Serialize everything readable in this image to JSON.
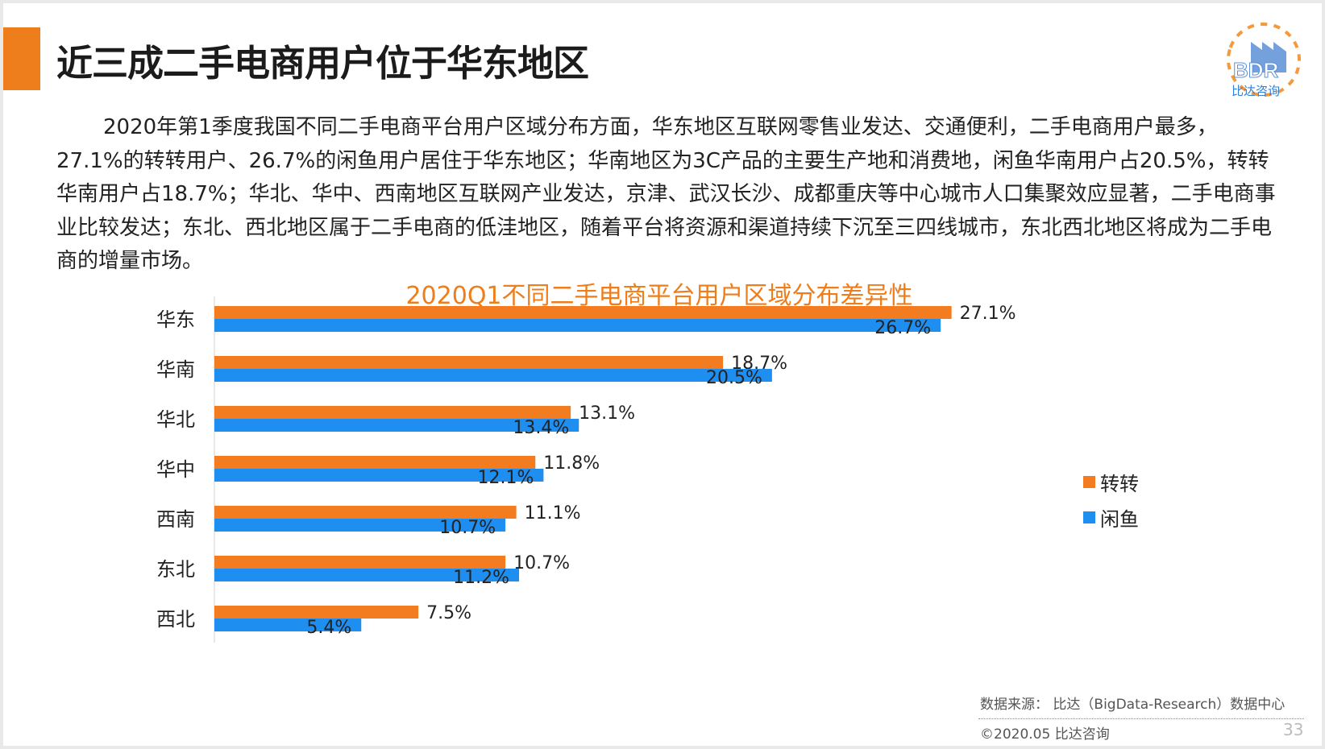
{
  "header": {
    "title": "近三成二手电商用户位于华东地区",
    "logo_text": "BDR",
    "logo_subtext": "比达咨询"
  },
  "paragraph": "2020年第1季度我国不同二手电商平台用户区域分布方面，华东地区互联网零售业发达、交通便利，二手电商用户最多，27.1%的转转用户、26.7%的闲鱼用户居住于华东地区；华南地区为3C产品的主要生产地和消费地，闲鱼华南用户占20.5%，转转华南用户占18.7%；华北、华中、西南地区互联网产业发达，京津、武汉长沙、成都重庆等中心城市人口集聚效应显著，二手电商事业比较发达；东北、西北地区属于二手电商的低洼地区，随着平台将资源和渠道持续下沉至三四线城市，东北西北地区将成为二手电商的增量市场。",
  "chart_data": {
    "type": "bar",
    "orientation": "horizontal",
    "title": "2020Q1不同二手电商平台用户区域分布差异性",
    "categories": [
      "华东",
      "华南",
      "华北",
      "华中",
      "西南",
      "东北",
      "西北"
    ],
    "series": [
      {
        "name": "转转",
        "color": "#f47c20",
        "values": [
          27.1,
          18.7,
          13.1,
          11.8,
          11.1,
          10.7,
          7.5
        ],
        "labels": [
          "27.1%",
          "18.7%",
          "13.1%",
          "11.8%",
          "11.1%",
          "10.7%",
          "7.5%"
        ]
      },
      {
        "name": "闲鱼",
        "color": "#1f8ef1",
        "values": [
          26.7,
          20.5,
          13.4,
          12.1,
          10.7,
          11.2,
          5.4
        ],
        "labels": [
          "26.7%",
          "20.5%",
          "13.4%",
          "12.1%",
          "10.7%",
          "11.2%",
          "5.4%"
        ]
      }
    ],
    "legend_position": "right",
    "grid": false
  },
  "footer": {
    "source": "数据来源： 比达（BigData-Research）数据中心",
    "copyright": "©2020.05  比达咨询",
    "page_number": "33"
  }
}
